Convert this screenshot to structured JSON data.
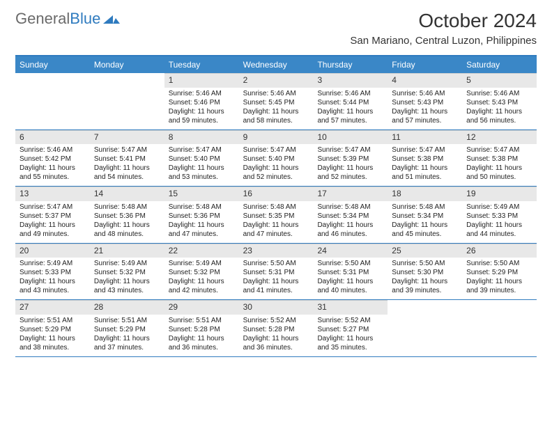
{
  "brand": {
    "part1": "General",
    "part2": "Blue"
  },
  "title": "October 2024",
  "location": "San Mariano, Central Luzon, Philippines",
  "colors": {
    "header_bg": "#3a87c7",
    "header_border": "#2f7bbf",
    "daynum_bg": "#e8e8e8",
    "text": "#222222",
    "brand_grey": "#6a6a6a",
    "brand_blue": "#2f7bbf"
  },
  "dow": [
    "Sunday",
    "Monday",
    "Tuesday",
    "Wednesday",
    "Thursday",
    "Friday",
    "Saturday"
  ],
  "weeks": [
    [
      {
        "empty": true
      },
      {
        "empty": true
      },
      {
        "num": "1",
        "sunrise": "5:46 AM",
        "sunset": "5:46 PM",
        "daylight": "11 hours and 59 minutes."
      },
      {
        "num": "2",
        "sunrise": "5:46 AM",
        "sunset": "5:45 PM",
        "daylight": "11 hours and 58 minutes."
      },
      {
        "num": "3",
        "sunrise": "5:46 AM",
        "sunset": "5:44 PM",
        "daylight": "11 hours and 57 minutes."
      },
      {
        "num": "4",
        "sunrise": "5:46 AM",
        "sunset": "5:43 PM",
        "daylight": "11 hours and 57 minutes."
      },
      {
        "num": "5",
        "sunrise": "5:46 AM",
        "sunset": "5:43 PM",
        "daylight": "11 hours and 56 minutes."
      }
    ],
    [
      {
        "num": "6",
        "sunrise": "5:46 AM",
        "sunset": "5:42 PM",
        "daylight": "11 hours and 55 minutes."
      },
      {
        "num": "7",
        "sunrise": "5:47 AM",
        "sunset": "5:41 PM",
        "daylight": "11 hours and 54 minutes."
      },
      {
        "num": "8",
        "sunrise": "5:47 AM",
        "sunset": "5:40 PM",
        "daylight": "11 hours and 53 minutes."
      },
      {
        "num": "9",
        "sunrise": "5:47 AM",
        "sunset": "5:40 PM",
        "daylight": "11 hours and 52 minutes."
      },
      {
        "num": "10",
        "sunrise": "5:47 AM",
        "sunset": "5:39 PM",
        "daylight": "11 hours and 52 minutes."
      },
      {
        "num": "11",
        "sunrise": "5:47 AM",
        "sunset": "5:38 PM",
        "daylight": "11 hours and 51 minutes."
      },
      {
        "num": "12",
        "sunrise": "5:47 AM",
        "sunset": "5:38 PM",
        "daylight": "11 hours and 50 minutes."
      }
    ],
    [
      {
        "num": "13",
        "sunrise": "5:47 AM",
        "sunset": "5:37 PM",
        "daylight": "11 hours and 49 minutes."
      },
      {
        "num": "14",
        "sunrise": "5:48 AM",
        "sunset": "5:36 PM",
        "daylight": "11 hours and 48 minutes."
      },
      {
        "num": "15",
        "sunrise": "5:48 AM",
        "sunset": "5:36 PM",
        "daylight": "11 hours and 47 minutes."
      },
      {
        "num": "16",
        "sunrise": "5:48 AM",
        "sunset": "5:35 PM",
        "daylight": "11 hours and 47 minutes."
      },
      {
        "num": "17",
        "sunrise": "5:48 AM",
        "sunset": "5:34 PM",
        "daylight": "11 hours and 46 minutes."
      },
      {
        "num": "18",
        "sunrise": "5:48 AM",
        "sunset": "5:34 PM",
        "daylight": "11 hours and 45 minutes."
      },
      {
        "num": "19",
        "sunrise": "5:49 AM",
        "sunset": "5:33 PM",
        "daylight": "11 hours and 44 minutes."
      }
    ],
    [
      {
        "num": "20",
        "sunrise": "5:49 AM",
        "sunset": "5:33 PM",
        "daylight": "11 hours and 43 minutes."
      },
      {
        "num": "21",
        "sunrise": "5:49 AM",
        "sunset": "5:32 PM",
        "daylight": "11 hours and 43 minutes."
      },
      {
        "num": "22",
        "sunrise": "5:49 AM",
        "sunset": "5:32 PM",
        "daylight": "11 hours and 42 minutes."
      },
      {
        "num": "23",
        "sunrise": "5:50 AM",
        "sunset": "5:31 PM",
        "daylight": "11 hours and 41 minutes."
      },
      {
        "num": "24",
        "sunrise": "5:50 AM",
        "sunset": "5:31 PM",
        "daylight": "11 hours and 40 minutes."
      },
      {
        "num": "25",
        "sunrise": "5:50 AM",
        "sunset": "5:30 PM",
        "daylight": "11 hours and 39 minutes."
      },
      {
        "num": "26",
        "sunrise": "5:50 AM",
        "sunset": "5:29 PM",
        "daylight": "11 hours and 39 minutes."
      }
    ],
    [
      {
        "num": "27",
        "sunrise": "5:51 AM",
        "sunset": "5:29 PM",
        "daylight": "11 hours and 38 minutes."
      },
      {
        "num": "28",
        "sunrise": "5:51 AM",
        "sunset": "5:29 PM",
        "daylight": "11 hours and 37 minutes."
      },
      {
        "num": "29",
        "sunrise": "5:51 AM",
        "sunset": "5:28 PM",
        "daylight": "11 hours and 36 minutes."
      },
      {
        "num": "30",
        "sunrise": "5:52 AM",
        "sunset": "5:28 PM",
        "daylight": "11 hours and 36 minutes."
      },
      {
        "num": "31",
        "sunrise": "5:52 AM",
        "sunset": "5:27 PM",
        "daylight": "11 hours and 35 minutes."
      },
      {
        "empty": true
      },
      {
        "empty": true
      }
    ]
  ]
}
